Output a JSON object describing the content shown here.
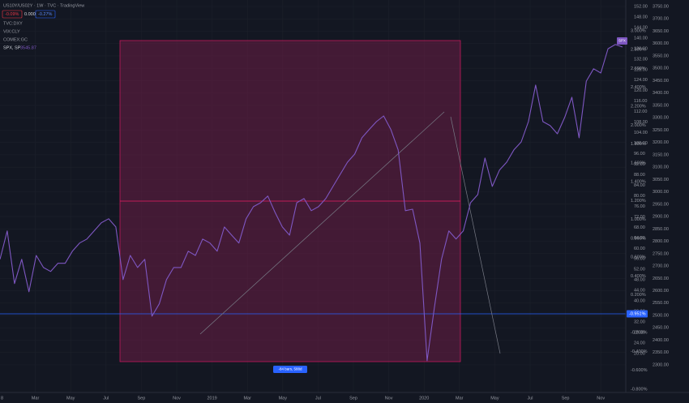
{
  "chart_data": {
    "type": "line",
    "header": {
      "symbol": "US10Y/US02Y · 1W · TVC · TradingView",
      "change1": "-0.09%",
      "value": "0.000",
      "change2": "-0.27%"
    },
    "indicators": [
      "TVC:DXY",
      "VIX:CLY",
      "COMEX:GC"
    ],
    "legend": {
      "label": "SPX, SP",
      "value": "3545.87"
    },
    "range_label": "-84 bars, 588d",
    "level_label": "-0.951%",
    "x_labels": [
      "8",
      "Mar",
      "May",
      "Jul",
      "Sep",
      "Nov",
      "2019",
      "Mar",
      "May",
      "Jul",
      "Sep",
      "Nov",
      "2020",
      "Mar",
      "May",
      "Jul",
      "Sep",
      "Nov"
    ],
    "series": [
      {
        "name": "SPX",
        "color": "#7e57c2",
        "values": [
          2727,
          2842,
          2629,
          2727,
          2596,
          2743,
          2694,
          2678,
          2711,
          2711,
          2760,
          2793,
          2809,
          2842,
          2875,
          2891,
          2858,
          2645,
          2743,
          2694,
          2727,
          2497,
          2547,
          2645,
          2694,
          2694,
          2760,
          2743,
          2809,
          2793,
          2760,
          2858,
          2825,
          2793,
          2891,
          2940,
          2956,
          2983,
          2917,
          2858,
          2825,
          2956,
          2973,
          2924,
          2940,
          2973,
          3022,
          3071,
          3120,
          3153,
          3219,
          3252,
          3284,
          3307,
          3252,
          3170,
          2924,
          2930,
          2793,
          2317,
          2530,
          2727,
          2842,
          2809,
          2842,
          2956,
          2989,
          3137,
          3022,
          3088,
          3120,
          3170,
          3202,
          3284,
          3432,
          3284,
          3268,
          3235,
          3301,
          3383,
          3219,
          3448,
          3498,
          3481,
          3579,
          3596,
          3586
        ]
      }
    ],
    "ylim": [
      2300,
      3750
    ],
    "yticks": [
      {
        "value": 3750,
        "label": "3750.00"
      },
      {
        "value": 3700,
        "label": "3700.00"
      },
      {
        "value": 3650,
        "label": "3650.00"
      },
      {
        "value": 3600,
        "label": "3600.00"
      },
      {
        "value": 3550,
        "label": "3550.00"
      },
      {
        "value": 3500,
        "label": "3500.00"
      },
      {
        "value": 3450,
        "label": "3450.00"
      },
      {
        "value": 3400,
        "label": "3400.00"
      },
      {
        "value": 3350,
        "label": "3350.00"
      },
      {
        "value": 3300,
        "label": "3300.00"
      },
      {
        "value": 3250,
        "label": "3250.00"
      },
      {
        "value": 3200,
        "label": "3200.00"
      },
      {
        "value": 3150,
        "label": "3150.00"
      },
      {
        "value": 3100,
        "label": "3100.00"
      },
      {
        "value": 3050,
        "label": "3050.00"
      },
      {
        "value": 3000,
        "label": "3000.00"
      },
      {
        "value": 2950,
        "label": "2950.00"
      },
      {
        "value": 2900,
        "label": "2900.00"
      },
      {
        "value": 2850,
        "label": "2850.00"
      },
      {
        "value": 2800,
        "label": "2800.00"
      },
      {
        "value": 2750,
        "label": "2750.00"
      },
      {
        "value": 2700,
        "label": "2700.00"
      },
      {
        "value": 2650,
        "label": "2650.00"
      },
      {
        "value": 2600,
        "label": "2600.00"
      },
      {
        "value": 2550,
        "label": "2550.00"
      },
      {
        "value": 2500,
        "label": "2500.00"
      },
      {
        "value": 2450,
        "label": "2450.00"
      },
      {
        "value": 2400,
        "label": "2400.00"
      },
      {
        "value": 2350,
        "label": "2350.00"
      },
      {
        "value": 2300,
        "label": "2300.00"
      }
    ],
    "y2lim": [
      -0.8,
      3
    ],
    "y2ticks": [
      {
        "value": 3,
        "label": "3.000%"
      },
      {
        "value": 2.8,
        "label": "2.800%"
      },
      {
        "value": 2.6,
        "label": "2.600%"
      },
      {
        "value": 2.4,
        "label": "2.400%"
      },
      {
        "value": 2.2,
        "label": "2.200%"
      },
      {
        "value": 2,
        "label": "2.000%"
      },
      {
        "value": 1.8,
        "label": "1.800%"
      },
      {
        "value": 1.6,
        "label": "1.600%"
      },
      {
        "value": 1.4,
        "label": "1.400%"
      },
      {
        "value": 1.2,
        "label": "1.200%"
      },
      {
        "value": 1,
        "label": "1.000%"
      },
      {
        "value": 0.8,
        "label": "0.800%"
      },
      {
        "value": 0.6,
        "label": "0.600%"
      },
      {
        "value": 0.4,
        "label": "0.400%"
      },
      {
        "value": 0.2,
        "label": "0.200%"
      },
      {
        "value": 0,
        "label": "0.000%"
      },
      {
        "value": -0.2,
        "label": "-0.200%"
      },
      {
        "value": -0.4,
        "label": "-0.400%"
      },
      {
        "value": -0.6,
        "label": "-0.600%"
      },
      {
        "value": -0.8,
        "label": "-0.800%"
      }
    ],
    "y3lim": [
      20,
      152
    ],
    "y3ticks": [
      {
        "value": 152,
        "label": "152.00"
      },
      {
        "value": 148,
        "label": "148.00"
      },
      {
        "value": 144,
        "label": "144.00"
      },
      {
        "value": 140,
        "label": "140.00"
      },
      {
        "value": 136,
        "label": "136.00"
      },
      {
        "value": 132,
        "label": "132.00"
      },
      {
        "value": 128,
        "label": "128.00"
      },
      {
        "value": 124,
        "label": "124.00"
      },
      {
        "value": 120,
        "label": "120.00"
      },
      {
        "value": 116,
        "label": "116.00"
      },
      {
        "value": 112,
        "label": "112.00"
      },
      {
        "value": 108,
        "label": "108.00"
      },
      {
        "value": 104,
        "label": "104.00"
      },
      {
        "value": 100,
        "label": "100.00"
      },
      {
        "value": 96,
        "label": "96.00"
      },
      {
        "value": 92,
        "label": "92.00"
      },
      {
        "value": 88,
        "label": "88.00"
      },
      {
        "value": 84,
        "label": "84.00"
      },
      {
        "value": 80,
        "label": "80.00"
      },
      {
        "value": 76,
        "label": "76.00"
      },
      {
        "value": 72,
        "label": "72.00"
      },
      {
        "value": 68,
        "label": "68.00"
      },
      {
        "value": 64,
        "label": "64.00"
      },
      {
        "value": 60,
        "label": "60.00"
      },
      {
        "value": 56,
        "label": "56.00"
      },
      {
        "value": 52,
        "label": "52.00"
      },
      {
        "value": 48,
        "label": "48.00"
      },
      {
        "value": 44,
        "label": "44.00"
      },
      {
        "value": 40,
        "label": "40.00"
      },
      {
        "value": 36,
        "label": "36.00"
      },
      {
        "value": 32,
        "label": "32.00"
      },
      {
        "value": 28,
        "label": "28.00"
      },
      {
        "value": 24,
        "label": "24.00"
      },
      {
        "value": 20,
        "label": "20.00"
      }
    ],
    "grid": true
  }
}
